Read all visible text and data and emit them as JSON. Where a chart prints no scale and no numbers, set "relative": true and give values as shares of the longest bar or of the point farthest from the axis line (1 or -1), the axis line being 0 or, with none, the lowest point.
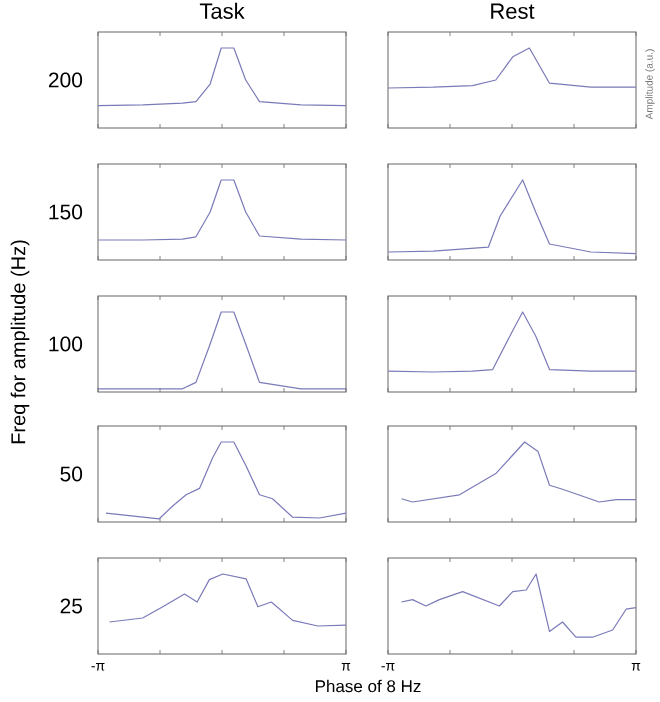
{
  "chart_data": [
    {
      "type": "line",
      "relative": true,
      "title": "Task",
      "ylabel": "200",
      "xlim": [
        -3.14159,
        3.14159
      ],
      "xticks": [
        {
          "value": -3.14159,
          "label": null
        },
        {
          "value": -1.5708,
          "label": null
        },
        {
          "value": 0,
          "label": null
        },
        {
          "value": 1.5708,
          "label": null
        },
        {
          "value": 3.14159,
          "label": null
        }
      ],
      "tick_labels": false,
      "annotations": [
        "Freq for amplitude (Hz)",
        "Phase of 8 Hz",
        "Amplitude (a.u.)"
      ],
      "series": [
        {
          "color": "#7a7ab8",
          "x": [
            -3.14,
            -2.0,
            -1.0,
            -0.66,
            -0.3,
            -0.02,
            0.3,
            0.6,
            0.95,
            2.0,
            3.14
          ],
          "values": [
            0.28,
            0.29,
            0.31,
            0.33,
            0.55,
            1,
            1,
            0.6,
            0.33,
            0.29,
            0.28
          ]
        }
      ]
    },
    {
      "type": "line",
      "relative": true,
      "title": "Rest",
      "xlim": [
        -3.14159,
        3.14159
      ],
      "xticks": [
        {
          "value": -3.14159,
          "label": null
        },
        {
          "value": -1.5708,
          "label": null
        },
        {
          "value": 0,
          "label": null
        },
        {
          "value": 1.5708,
          "label": null
        },
        {
          "value": 3.14159,
          "label": null
        }
      ],
      "tick_labels": false,
      "series": [
        {
          "color": "#7a7ab8",
          "x": [
            -3.14,
            -2.0,
            -1.0,
            -0.41,
            0.02,
            0.44,
            0.95,
            2.0,
            3.14
          ],
          "values": [
            0.5,
            0.51,
            0.53,
            0.6,
            0.89,
            1,
            0.56,
            0.51,
            0.51
          ]
        }
      ]
    },
    {
      "type": "line",
      "relative": true,
      "ylabel": "150",
      "xlim": [
        -3.14159,
        3.14159
      ],
      "xticks": [
        {
          "value": -3.14159,
          "label": null
        },
        {
          "value": -1.5708,
          "label": null
        },
        {
          "value": 0,
          "label": null
        },
        {
          "value": 1.5708,
          "label": null
        },
        {
          "value": 3.14159,
          "label": null
        }
      ],
      "tick_labels": false,
      "series": [
        {
          "color": "#7a7ab8",
          "x": [
            -3.14,
            -2.0,
            -1.0,
            -0.66,
            -0.3,
            -0.02,
            0.3,
            0.6,
            0.95,
            2.0,
            3.14
          ],
          "values": [
            0.25,
            0.25,
            0.26,
            0.29,
            0.6,
            1,
            1,
            0.6,
            0.3,
            0.26,
            0.25
          ]
        }
      ]
    },
    {
      "type": "line",
      "relative": true,
      "xlim": [
        -3.14159,
        3.14159
      ],
      "xticks": [
        {
          "value": -3.14159,
          "label": null
        },
        {
          "value": -1.5708,
          "label": null
        },
        {
          "value": 0,
          "label": null
        },
        {
          "value": 1.5708,
          "label": null
        },
        {
          "value": 3.14159,
          "label": null
        }
      ],
      "tick_labels": false,
      "series": [
        {
          "color": "#7a7ab8",
          "x": [
            -3.14,
            -2.0,
            -0.6,
            -0.3,
            0.27,
            0.6,
            0.95,
            2.0,
            3.14
          ],
          "values": [
            0.1,
            0.11,
            0.16,
            0.55,
            1,
            0.6,
            0.2,
            0.1,
            0.08
          ]
        }
      ]
    },
    {
      "type": "line",
      "relative": true,
      "ylabel": "100",
      "xlim": [
        -3.14159,
        3.14159
      ],
      "xticks": [
        {
          "value": -3.14159,
          "label": null
        },
        {
          "value": -1.5708,
          "label": null
        },
        {
          "value": 0,
          "label": null
        },
        {
          "value": 1.5708,
          "label": null
        },
        {
          "value": 3.14159,
          "label": null
        }
      ],
      "tick_labels": false,
      "series": [
        {
          "color": "#7a7ab8",
          "x": [
            -3.14,
            -2.0,
            -1.0,
            -0.66,
            -0.3,
            -0.02,
            0.3,
            0.6,
            0.95,
            2.0,
            3.14
          ],
          "values": [
            0.04,
            0.04,
            0.04,
            0.12,
            0.6,
            1,
            1,
            0.6,
            0.12,
            0.04,
            0.04
          ]
        }
      ]
    },
    {
      "type": "line",
      "relative": true,
      "xlim": [
        -3.14159,
        3.14159
      ],
      "xticks": [
        {
          "value": -3.14159,
          "label": null
        },
        {
          "value": -1.5708,
          "label": null
        },
        {
          "value": 0,
          "label": null
        },
        {
          "value": 1.5708,
          "label": null
        },
        {
          "value": 3.14159,
          "label": null
        }
      ],
      "tick_labels": false,
      "series": [
        {
          "color": "#7a7ab8",
          "x": [
            -3.14,
            -2.0,
            -1.0,
            -0.49,
            0.0,
            0.27,
            0.6,
            0.95,
            2.0,
            3.14
          ],
          "values": [
            0.26,
            0.25,
            0.26,
            0.28,
            0.75,
            1,
            0.7,
            0.28,
            0.26,
            0.26
          ]
        }
      ]
    },
    {
      "type": "line",
      "relative": true,
      "ylabel": "50",
      "xlim": [
        -3.14159,
        3.14159
      ],
      "xticks": [
        {
          "value": -3.14159,
          "label": null
        },
        {
          "value": -1.5708,
          "label": null
        },
        {
          "value": 0,
          "label": null
        },
        {
          "value": 1.5708,
          "label": null
        },
        {
          "value": 3.14159,
          "label": null
        }
      ],
      "tick_labels": false,
      "series": [
        {
          "color": "#7a7ab8",
          "x": [
            -2.94,
            -1.59,
            -1.25,
            -0.91,
            -0.57,
            -0.24,
            -0.02,
            0.3,
            0.61,
            0.95,
            1.28,
            1.79,
            2.47,
            3.14
          ],
          "values": [
            0.11,
            0.04,
            0.2,
            0.34,
            0.42,
            0.8,
            1,
            1,
            0.7,
            0.34,
            0.29,
            0.06,
            0.05,
            0.11
          ]
        }
      ]
    },
    {
      "type": "line",
      "relative": true,
      "xlim": [
        -3.14159,
        3.14159
      ],
      "xticks": [
        {
          "value": -3.14159,
          "label": null
        },
        {
          "value": -1.5708,
          "label": null
        },
        {
          "value": 0,
          "label": null
        },
        {
          "value": 1.5708,
          "label": null
        },
        {
          "value": 3.14159,
          "label": null
        }
      ],
      "tick_labels": false,
      "series": [
        {
          "color": "#7a7ab8",
          "x": [
            -2.8,
            -2.52,
            -1.33,
            -0.4,
            0.32,
            0.66,
            0.95,
            1.28,
            2.21,
            2.64,
            3.14
          ],
          "values": [
            0.29,
            0.25,
            0.34,
            0.61,
            1,
            0.88,
            0.46,
            0.41,
            0.25,
            0.28,
            0.28
          ]
        }
      ]
    },
    {
      "type": "line",
      "relative": true,
      "ylabel": "25",
      "xlim": [
        -3.14159,
        3.14159
      ],
      "xticks": [
        {
          "value": -3.14159,
          "label": "-π"
        },
        {
          "value": -1.5708,
          "label": null
        },
        {
          "value": 0,
          "label": null
        },
        {
          "value": 1.5708,
          "label": null
        },
        {
          "value": 3.14159,
          "label": "π"
        }
      ],
      "tick_labels": "x",
      "series": [
        {
          "color": "#7a7ab8",
          "x": [
            -2.85,
            -2.01,
            -1.5,
            -0.95,
            -0.63,
            -0.32,
            0.02,
            0.61,
            0.91,
            1.25,
            1.79,
            2.43,
            3.14
          ],
          "values": [
            0.4,
            0.45,
            0.59,
            0.75,
            0.65,
            0.93,
            1,
            0.94,
            0.59,
            0.65,
            0.42,
            0.35,
            0.36
          ]
        }
      ]
    },
    {
      "type": "line",
      "relative": true,
      "xlim": [
        -3.14159,
        3.14159
      ],
      "xticks": [
        {
          "value": -3.14159,
          "label": "-π"
        },
        {
          "value": -1.5708,
          "label": null
        },
        {
          "value": 0,
          "label": null
        },
        {
          "value": 1.5708,
          "label": null
        },
        {
          "value": 3.14159,
          "label": "π"
        }
      ],
      "tick_labels": "x",
      "series": [
        {
          "color": "#7a7ab8",
          "x": [
            -2.8,
            -2.52,
            -2.18,
            -1.84,
            -1.25,
            -0.32,
            0.02,
            0.36,
            0.61,
            0.95,
            1.28,
            1.62,
            2.04,
            2.55,
            2.89,
            3.14
          ],
          "values": [
            0.65,
            0.68,
            0.6,
            0.68,
            0.78,
            0.6,
            0.78,
            0.8,
            1,
            0.28,
            0.4,
            0.21,
            0.21,
            0.3,
            0.56,
            0.58
          ]
        }
      ]
    }
  ]
}
